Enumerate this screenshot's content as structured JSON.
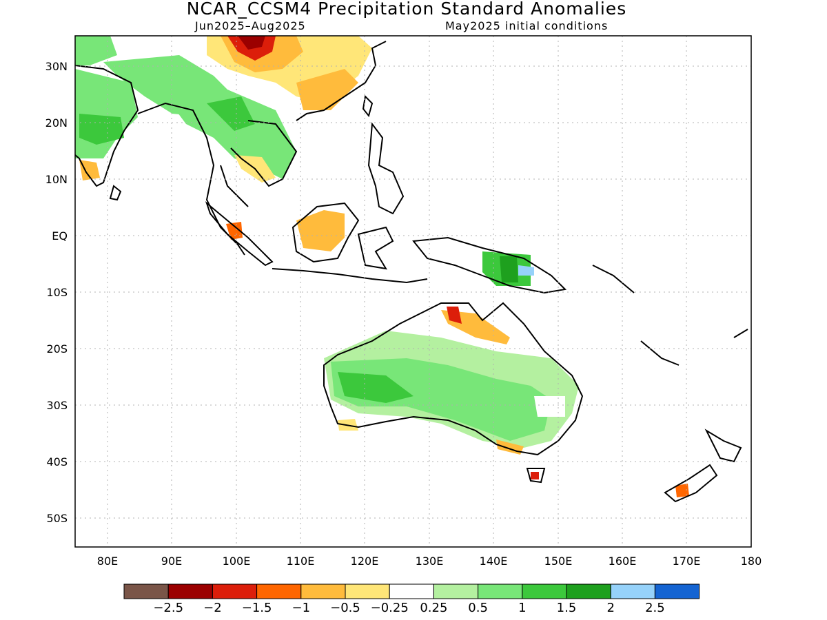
{
  "title": "NCAR_CCSM4 Precipitation Standard Anomalies",
  "subtitle_left": "Jun2025–Aug2025",
  "subtitle_right": "May2025 initial conditions",
  "lat_ticks": [
    "30N",
    "20N",
    "10N",
    "EQ",
    "10S",
    "20S",
    "30S",
    "40S",
    "50S"
  ],
  "lon_ticks": [
    "80E",
    "90E",
    "100E",
    "110E",
    "120E",
    "130E",
    "140E",
    "150E",
    "160E",
    "170E",
    "180"
  ],
  "colorbar": {
    "colors": [
      "#7a5548",
      "#9b0000",
      "#dc1e0a",
      "#ff6600",
      "#ffbb3c",
      "#ffe678",
      "#ffffff",
      "#b4f0a0",
      "#78e678",
      "#3cc83c",
      "#1ea01e",
      "#96d2fa",
      "#1464d2"
    ],
    "labels": [
      "−2.5",
      "−2",
      "−1.5",
      "−1",
      "−0.5",
      "−0.25",
      "0.25",
      "0.5",
      "1",
      "1.5",
      "2",
      "2.5"
    ]
  },
  "palette": {
    "light_green": "#b4f0a0",
    "green": "#78e678",
    "mid_green": "#3cc83c",
    "dark_green": "#1ea01e",
    "light_blue": "#96d2fa",
    "light_yellow": "#ffe678",
    "orange_yellow": "#ffbb3c",
    "orange": "#ff6600",
    "red": "#dc1e0a",
    "dark_red": "#9b0000"
  }
}
